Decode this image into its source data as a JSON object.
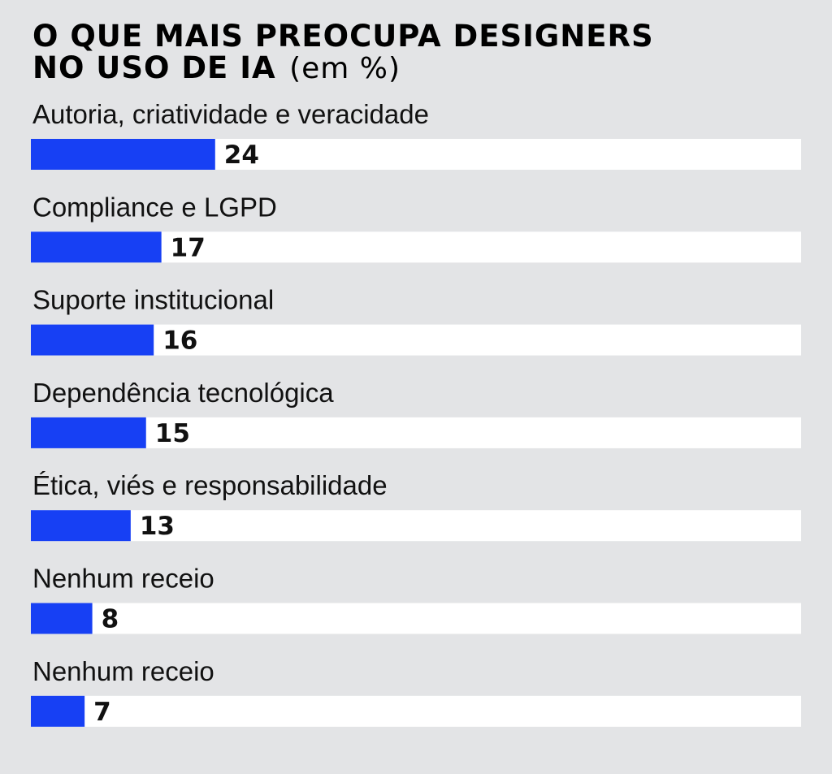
{
  "chart_data": {
    "type": "bar",
    "orientation": "horizontal",
    "title": "O QUE MAIS PREOCUPA DESIGNERS NO USO DE IA",
    "title_lines": [
      "O QUE MAIS PREOCUPA DESIGNERS",
      "NO USO DE IA"
    ],
    "unit": "(em %)",
    "categories": [
      "Autoria, criatividade e veracidade",
      "Compliance e LGPD",
      "Suporte institucional",
      "Dependência tecnológica",
      "Ética, viés e responsabilidade",
      "Nenhum receio",
      "Nenhum receio"
    ],
    "values": [
      24,
      17,
      16,
      15,
      13,
      8,
      7
    ],
    "xlim": [
      0,
      100
    ],
    "grid": false,
    "legend": "none",
    "colors": {
      "bar": "#1740f4",
      "track": "#ffffff",
      "background": "#e3e4e6",
      "text": "#111111"
    }
  }
}
